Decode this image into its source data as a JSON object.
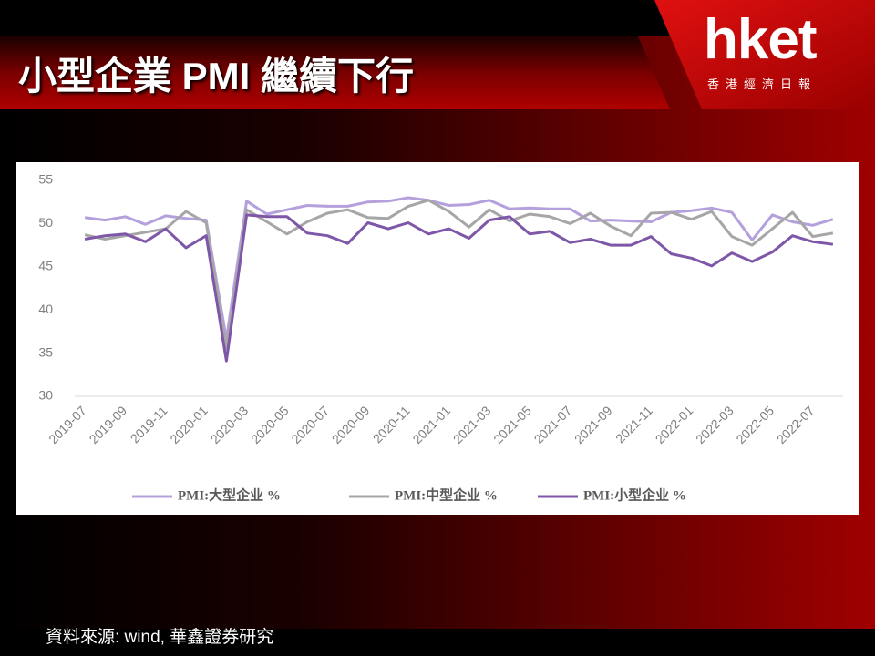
{
  "header": {
    "title": "小型企業 PMI 繼續下行",
    "logo": "hket",
    "logo_subtitle": "香港經濟日報"
  },
  "footer": {
    "source": "資料來源: wind, 華鑫證券研究"
  },
  "chart_data": {
    "type": "line",
    "categories": [
      "2019-07",
      null,
      "2019-09",
      null,
      "2019-11",
      null,
      "2020-01",
      null,
      "2020-03",
      null,
      "2020-05",
      null,
      "2020-07",
      null,
      "2020-09",
      null,
      "2020-11",
      null,
      "2021-01",
      null,
      "2021-03",
      null,
      "2021-05",
      null,
      "2021-07",
      null,
      "2021-09",
      null,
      "2021-11",
      null,
      "2022-01",
      null,
      "2022-03",
      null,
      "2022-05",
      null,
      "2022-07",
      null
    ],
    "series": [
      {
        "name": "PMI:大型企业 %",
        "color": "#b4a0dc",
        "values": [
          50.7,
          50.4,
          50.8,
          49.9,
          50.9,
          50.6,
          50.4,
          36.6,
          52.6,
          51.1,
          51.6,
          52.1,
          52.0,
          52.0,
          52.5,
          52.6,
          53.0,
          52.7,
          52.1,
          52.2,
          52.7,
          51.7,
          51.8,
          51.7,
          51.7,
          50.3,
          50.4,
          50.3,
          50.2,
          51.3,
          51.5,
          51.8,
          51.3,
          48.1,
          51.0,
          50.2,
          49.8,
          50.5
        ]
      },
      {
        "name": "PMI:中型企业 %",
        "color": "#a6a6a6",
        "values": [
          48.7,
          48.2,
          48.6,
          49.0,
          49.4,
          51.4,
          50.1,
          35.5,
          51.6,
          50.2,
          48.8,
          50.2,
          51.2,
          51.6,
          50.7,
          50.6,
          52.0,
          52.7,
          51.4,
          49.6,
          51.6,
          50.3,
          51.1,
          50.8,
          50.0,
          51.2,
          49.7,
          48.6,
          51.2,
          51.3,
          50.5,
          51.4,
          48.5,
          47.5,
          49.4,
          51.3,
          48.5,
          48.9
        ]
      },
      {
        "name": "PMI:小型企业 %",
        "color": "#7e57a8",
        "values": [
          48.2,
          48.6,
          48.8,
          47.9,
          49.4,
          47.2,
          48.6,
          34.1,
          51.0,
          50.8,
          50.8,
          48.9,
          48.6,
          47.7,
          50.1,
          49.4,
          50.1,
          48.8,
          49.4,
          48.3,
          50.4,
          50.8,
          48.8,
          49.1,
          47.8,
          48.2,
          47.5,
          47.5,
          48.5,
          46.5,
          46.0,
          45.1,
          46.6,
          45.6,
          46.7,
          48.6,
          47.9,
          47.6
        ]
      }
    ],
    "ylim": [
      30,
      55
    ],
    "yticks": [
      30,
      35,
      40,
      45,
      50,
      55
    ],
    "grid": false,
    "legend": "bottom"
  }
}
